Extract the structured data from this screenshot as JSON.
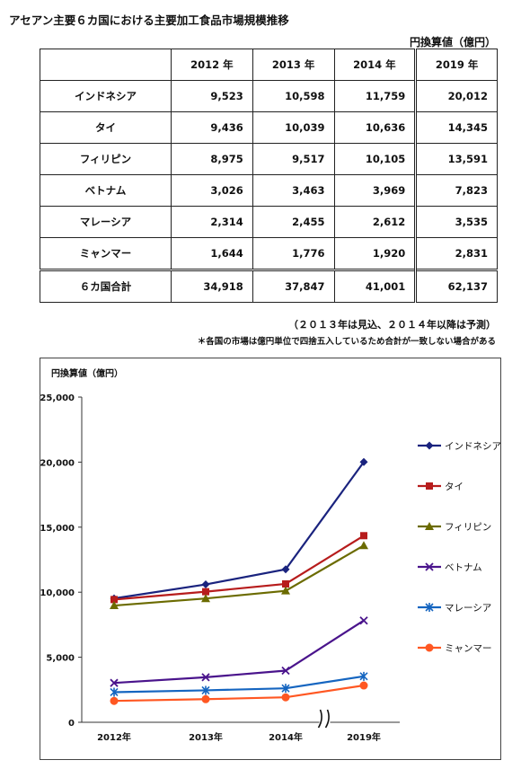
{
  "page": {
    "title": "アセアン主要６カ国における主要加工食品市場規模推移",
    "unit": "円換算値（億円）",
    "note_forecast": "（２０１３年は見込、２０１４年以降は予測）",
    "note_rounding": "＊各国の市場は億円単位で四捨五入しているため合計が一致しない場合がある"
  },
  "table": {
    "headers": [
      "",
      "2012 年",
      "2013 年",
      "2014 年",
      "2019 年"
    ],
    "rows": [
      {
        "name": "インドネシア",
        "values": [
          "9,523",
          "10,598",
          "11,759",
          "20,012"
        ]
      },
      {
        "name": "タイ",
        "values": [
          "9,436",
          "10,039",
          "10,636",
          "14,345"
        ]
      },
      {
        "name": "フィリピン",
        "values": [
          "8,975",
          "9,517",
          "10,105",
          "13,591"
        ]
      },
      {
        "name": "ベトナム",
        "values": [
          "3,026",
          "3,463",
          "3,969",
          "7,823"
        ]
      },
      {
        "name": "マレーシア",
        "values": [
          "2,314",
          "2,455",
          "2,612",
          "3,535"
        ]
      },
      {
        "name": "ミャンマー",
        "values": [
          "1,644",
          "1,776",
          "1,920",
          "2,831"
        ]
      }
    ],
    "total": {
      "name": "６カ国合計",
      "values": [
        "34,918",
        "37,847",
        "41,001",
        "62,137"
      ]
    }
  },
  "chart_data": {
    "type": "line",
    "ylabel": "円換算値（億円）",
    "categories": [
      "2012年",
      "2013年",
      "2014年",
      "2019年"
    ],
    "ylim": [
      0,
      25000
    ],
    "yticks": [
      0,
      5000,
      10000,
      15000,
      20000,
      25000
    ],
    "ytick_labels": [
      "0",
      "5,000",
      "10,000",
      "15,000",
      "20,000",
      "25,000"
    ],
    "axis_break_between": [
      "2014年",
      "2019年"
    ],
    "legend_position": "right",
    "series": [
      {
        "name": "インドネシア",
        "color": "#1a237e",
        "marker": "diamond",
        "values": [
          9523,
          10598,
          11759,
          20012
        ]
      },
      {
        "name": "タイ",
        "color": "#b71c1c",
        "marker": "square",
        "values": [
          9436,
          10039,
          10636,
          14345
        ]
      },
      {
        "name": "フィリピン",
        "color": "#6b6b00",
        "marker": "triangle",
        "values": [
          8975,
          9517,
          10105,
          13591
        ]
      },
      {
        "name": "ベトナム",
        "color": "#4a148c",
        "marker": "x",
        "values": [
          3026,
          3463,
          3969,
          7823
        ]
      },
      {
        "name": "マレーシア",
        "color": "#1565c0",
        "marker": "star",
        "values": [
          2314,
          2455,
          2612,
          3535
        ]
      },
      {
        "name": "ミャンマー",
        "color": "#ff5722",
        "marker": "circle",
        "values": [
          1644,
          1776,
          1920,
          2831
        ]
      }
    ]
  }
}
